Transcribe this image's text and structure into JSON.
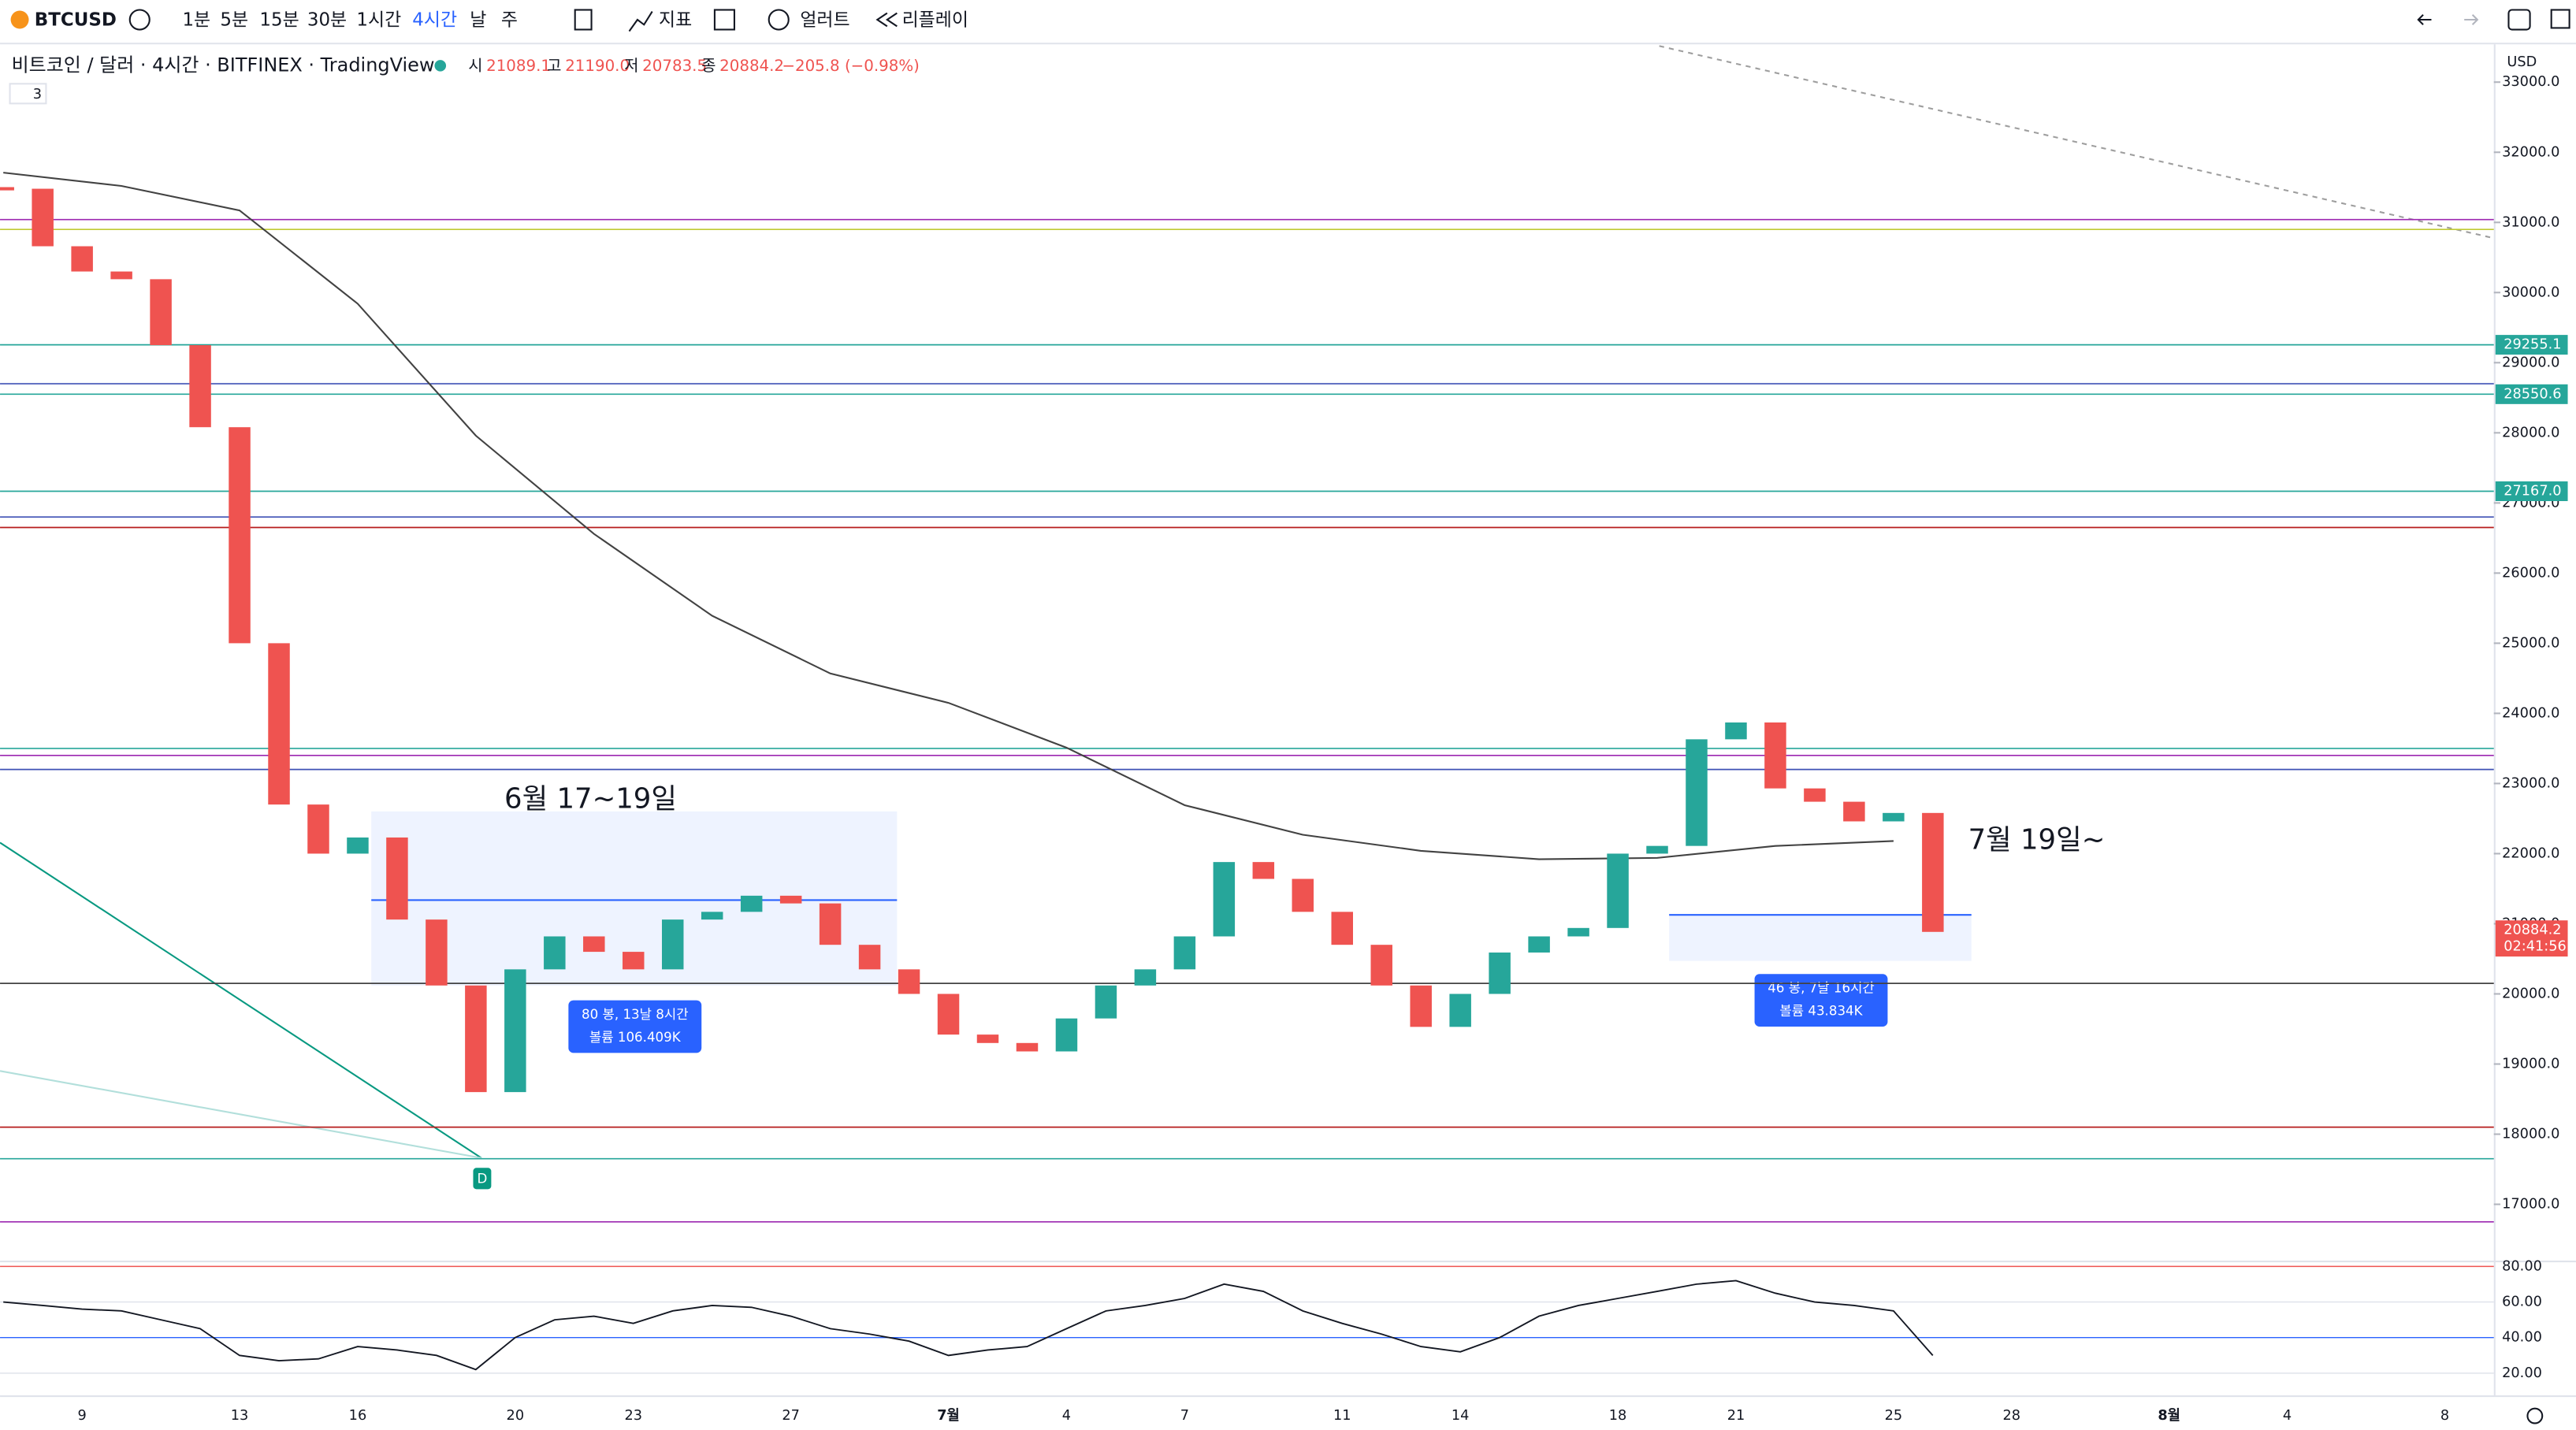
{
  "toolbar": {
    "symbol": "BTCUSD",
    "intervals": [
      "1분",
      "5분",
      "15분",
      "30분",
      "1시간",
      "4시간",
      "날",
      "주"
    ],
    "indicators": "지표",
    "alerts": "얼러트",
    "replay": "리플레이"
  },
  "legend": {
    "title": "비트코인 / 달러 · 4시간 · BITFINEX · TradingView",
    "open_label": "시",
    "open": "21089.1",
    "high_label": "고",
    "high": "21190.0",
    "low_label": "저",
    "low": "20783.5",
    "close_label": "종",
    "close": "20884.2",
    "change": "−205.8 (−0.98%)",
    "indicator_count": "3"
  },
  "currency": "USD",
  "chart": {
    "price_ticks": [
      {
        "value": 33000,
        "label": "33000.0"
      },
      {
        "value": 32000,
        "label": "32000.0"
      },
      {
        "value": 31000,
        "label": "31000.0"
      },
      {
        "value": 30000,
        "label": "30000.0"
      },
      {
        "value": 29000,
        "label": "29000.0"
      },
      {
        "value": 28000,
        "label": "28000.0"
      },
      {
        "value": 27000,
        "label": "27000.0"
      },
      {
        "value": 26000,
        "label": "26000.0"
      },
      {
        "value": 25000,
        "label": "25000.0"
      },
      {
        "value": 24000,
        "label": "24000.0"
      },
      {
        "value": 23000,
        "label": "23000.0"
      },
      {
        "value": 22000,
        "label": "22000.0"
      },
      {
        "value": 21000,
        "label": "21000.0"
      },
      {
        "value": 20000,
        "label": "20000.0"
      },
      {
        "value": 19000,
        "label": "19000.0"
      },
      {
        "value": 18000,
        "label": "18000.0"
      },
      {
        "value": 17000,
        "label": "17000.0"
      }
    ],
    "date_labels": [
      "9",
      "13",
      "16",
      "20",
      "23",
      "27",
      "7월",
      "4",
      "7",
      "11",
      "14",
      "18",
      "21",
      "25",
      "28",
      "8월",
      "4",
      "8"
    ],
    "closes": [
      31480,
      30660,
      30300,
      30190,
      29250,
      28080,
      25000,
      22700,
      22000,
      22230,
      21060,
      20120,
      18600,
      20350,
      20820,
      20600,
      20350,
      21060,
      21170,
      21400,
      21290,
      20700,
      20350,
      20000,
      19420,
      19300,
      19180,
      19650,
      20120,
      20350,
      20820,
      21880,
      21640,
      21170,
      20700,
      20120,
      19530,
      20000,
      20590,
      20820,
      20940,
      22000,
      22110,
      23630,
      23870,
      22930,
      22740,
      22460,
      22580,
      20884.2
    ],
    "ma200": [
      31710,
      31520,
      31170,
      29840,
      27960,
      26560,
      25390,
      24570,
      24150,
      23510,
      22690,
      22270,
      22040,
      21920,
      21940,
      22110,
      22180
    ],
    "levels": [
      {
        "value": 31040,
        "color": "#9c27b0"
      },
      {
        "value": 30900,
        "color": "#c0ca33"
      },
      {
        "value": 29255.1,
        "color": "#26a69a",
        "label": "29255.1"
      },
      {
        "value": 28700,
        "color": "#3f51b5"
      },
      {
        "value": 28550.6,
        "color": "#26a69a",
        "label": "28550.6"
      },
      {
        "value": 27167,
        "color": "#26a69a",
        "label": "27167.0"
      },
      {
        "value": 26800,
        "color": "#3f51b5"
      },
      {
        "value": 26650,
        "color": "#b71c1c"
      },
      {
        "value": 23500,
        "color": "#26a69a"
      },
      {
        "value": 23400,
        "color": "#9c27b0"
      },
      {
        "value": 23200,
        "color": "#3f51b5"
      },
      {
        "value": 20150,
        "color": "#424242"
      },
      {
        "value": 18100,
        "color": "#b71c1c"
      },
      {
        "value": 17650,
        "color": "#26a69a"
      },
      {
        "value": 16750,
        "color": "#9c27b0"
      }
    ],
    "last_price": "20884.2",
    "countdown": "02:41:56",
    "annotations": [
      "6월 17~19일",
      "7월 19일~"
    ],
    "measure_1": [
      "80 봉, 13날 8시간",
      "볼륨 106.409K"
    ],
    "measure_2": [
      "46 봉, 7날 16시간",
      "볼륨 43.834K"
    ],
    "marker": "D",
    "rsi_ticks": [
      {
        "value": 80,
        "label": "80.00"
      },
      {
        "value": 60,
        "label": "60.00"
      },
      {
        "value": 40,
        "label": "40.00"
      },
      {
        "value": 20,
        "label": "20.00"
      }
    ],
    "rsi": [
      60,
      58,
      56,
      55,
      50,
      45,
      30,
      27,
      28,
      35,
      33,
      30,
      22,
      40,
      50,
      52,
      48,
      55,
      58,
      57,
      52,
      45,
      42,
      38,
      30,
      33,
      35,
      45,
      55,
      58,
      62,
      70,
      66,
      55,
      48,
      42,
      35,
      32,
      40,
      52,
      58,
      62,
      66,
      70,
      72,
      65,
      60,
      58,
      55,
      30
    ]
  }
}
